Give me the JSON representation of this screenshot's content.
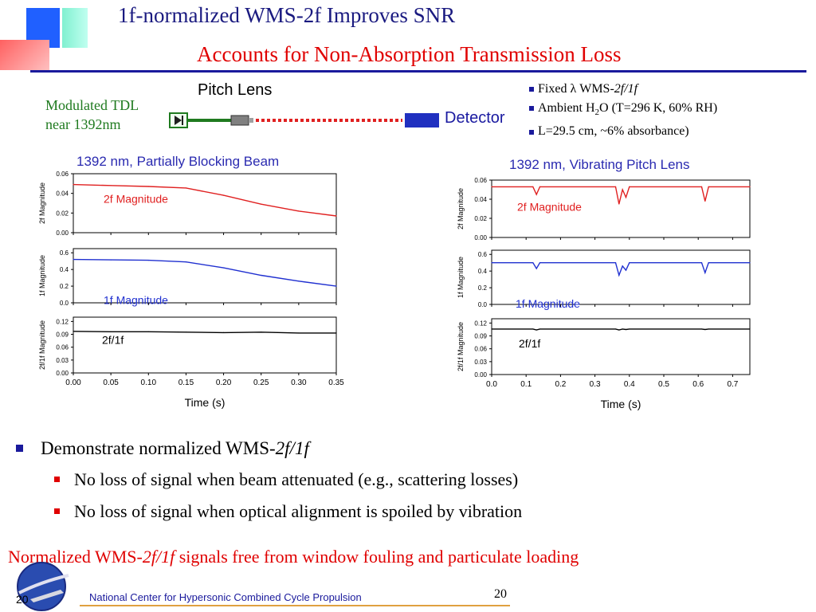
{
  "slide": {
    "title_line1": "1f-normalized WMS-2f Improves SNR",
    "title_line2": "Accounts for Non-Absorption Transmission Loss",
    "source_label_line1": "Modulated TDL",
    "source_label_line2": "near 1392nm",
    "pitch_lens_label": "Pitch Lens",
    "detector_label": "Detector",
    "conditions": [
      {
        "prefix": "Fixed ",
        "lambda": "λ",
        "mid": " WMS-",
        "italic": "2f/1f"
      },
      {
        "prefix": "Ambient H",
        "sub": "2",
        "rest": "O (T=296 K, 60% RH)"
      },
      {
        "text": "L=29.5 cm, ~6% absorbance)"
      }
    ],
    "bullet_main": {
      "text": "Demonstrate normalized WMS-",
      "italic": "2f/1f"
    },
    "sub_bullets": [
      "No loss of signal when beam attenuated (e.g., scattering losses)",
      "No loss of signal when optical alignment is spoiled by vibration"
    ],
    "conclusion": {
      "pre": "Normalized WMS-",
      "italic": "2f/1f",
      "post": " signals free from window fouling and particulate loading"
    },
    "footer_text": "National Center for Hypersonic Combined Cycle Propulsion",
    "page_number": "20",
    "logo_number": "20",
    "colors": {
      "title_blue": "#1a1a80",
      "accent_red": "#e00000",
      "trace_red": "#e02020",
      "trace_blue": "#2030d0",
      "trace_black": "#000000"
    }
  },
  "chart_data": [
    {
      "type": "line",
      "title": "1392 nm, Partially Blocking Beam",
      "xlabel": "Time (s)",
      "xlim": [
        0.0,
        0.35
      ],
      "xticks": [
        "0.00",
        "0.05",
        "0.10",
        "0.15",
        "0.20",
        "0.25",
        "0.30",
        "0.35"
      ],
      "panels": [
        {
          "ylabel": "2f Magnitude",
          "label": "2f Magnitude",
          "color": "#e02020",
          "ylim": [
            0,
            0.06
          ],
          "yticks": [
            "0.00",
            "0.02",
            "0.04",
            "0.06"
          ],
          "x": [
            0,
            0.05,
            0.1,
            0.15,
            0.2,
            0.25,
            0.3,
            0.35
          ],
          "y": [
            0.049,
            0.048,
            0.047,
            0.0455,
            0.038,
            0.029,
            0.022,
            0.017
          ]
        },
        {
          "ylabel": "1f Magnitude",
          "label": "1f Magnitude",
          "color": "#2030d0",
          "ylim": [
            0,
            0.65
          ],
          "yticks": [
            "0.0",
            "0.2",
            "0.4",
            "0.6"
          ],
          "x": [
            0,
            0.05,
            0.1,
            0.15,
            0.2,
            0.25,
            0.3,
            0.35
          ],
          "y": [
            0.52,
            0.515,
            0.51,
            0.49,
            0.42,
            0.33,
            0.26,
            0.2
          ]
        },
        {
          "ylabel": "2f/1f Magnitude",
          "label": "2f/1f",
          "color": "#000000",
          "ylim": [
            0,
            0.13
          ],
          "yticks": [
            "0.00",
            "0.03",
            "0.06",
            "0.09",
            "0.12"
          ],
          "x": [
            0,
            0.05,
            0.1,
            0.15,
            0.2,
            0.25,
            0.3,
            0.35
          ],
          "y": [
            0.097,
            0.096,
            0.096,
            0.095,
            0.094,
            0.095,
            0.093,
            0.093
          ]
        }
      ]
    },
    {
      "type": "line",
      "title": "1392 nm, Vibrating Pitch Lens",
      "xlabel": "Time (s)",
      "xlim": [
        0.0,
        0.75
      ],
      "xticks": [
        "0.0",
        "0.1",
        "0.2",
        "0.3",
        "0.4",
        "0.5",
        "0.6",
        "0.7"
      ],
      "panels": [
        {
          "ylabel": "2f Magnitude",
          "label": "2f Magnitude",
          "color": "#e02020",
          "ylim": [
            0,
            0.06
          ],
          "yticks": [
            "0.00",
            "0.02",
            "0.04",
            "0.06"
          ],
          "x": [
            0,
            0.12,
            0.13,
            0.14,
            0.36,
            0.37,
            0.38,
            0.39,
            0.4,
            0.61,
            0.62,
            0.63,
            0.75
          ],
          "y": [
            0.053,
            0.053,
            0.045,
            0.053,
            0.053,
            0.035,
            0.05,
            0.042,
            0.053,
            0.053,
            0.038,
            0.053,
            0.053
          ]
        },
        {
          "ylabel": "1f Magnitude",
          "label": "1f Magnitude",
          "color": "#2030d0",
          "ylim": [
            0,
            0.65
          ],
          "yticks": [
            "0.0",
            "0.2",
            "0.4",
            "0.6"
          ],
          "x": [
            0,
            0.12,
            0.13,
            0.14,
            0.36,
            0.37,
            0.38,
            0.39,
            0.4,
            0.61,
            0.62,
            0.63,
            0.75
          ],
          "y": [
            0.5,
            0.5,
            0.43,
            0.5,
            0.5,
            0.35,
            0.46,
            0.41,
            0.5,
            0.5,
            0.38,
            0.5,
            0.5
          ]
        },
        {
          "ylabel": "2f/1f Magnitude",
          "label": "2f/1f",
          "color": "#000000",
          "ylim": [
            0,
            0.13
          ],
          "yticks": [
            "0.00",
            "0.03",
            "0.06",
            "0.09",
            "0.12"
          ],
          "x": [
            0,
            0.12,
            0.13,
            0.14,
            0.36,
            0.37,
            0.38,
            0.39,
            0.4,
            0.61,
            0.62,
            0.63,
            0.75
          ],
          "y": [
            0.106,
            0.106,
            0.104,
            0.106,
            0.106,
            0.104,
            0.106,
            0.105,
            0.106,
            0.106,
            0.105,
            0.106,
            0.106
          ]
        }
      ]
    }
  ]
}
